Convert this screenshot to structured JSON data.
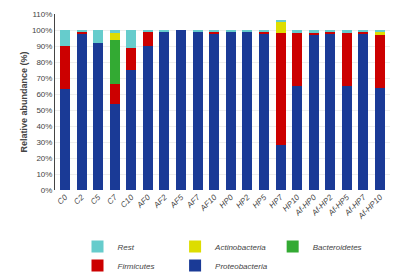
{
  "chart_data": {
    "type": "bar",
    "stacked": true,
    "categories": [
      "C0",
      "C2",
      "C5",
      "C7",
      "C10",
      "AF0",
      "AF2",
      "AF5",
      "AF7",
      "AF10",
      "HP0",
      "HP2",
      "HP5",
      "HP7",
      "HP10",
      "Af-HP0",
      "Af-HP2",
      "Af-HP5",
      "Af-HP7",
      "Af-HP10"
    ],
    "series": [
      {
        "name": "Proteobacteria",
        "color": "#1a3a96",
        "values": [
          63,
          98,
          92,
          54,
          75,
          90,
          99,
          100,
          99,
          98,
          99,
          99,
          98,
          28,
          65,
          97,
          98,
          65,
          98,
          64
        ]
      },
      {
        "name": "Firmicutes",
        "color": "#cc0000",
        "values": [
          27,
          1,
          0,
          12,
          14,
          9,
          0,
          0,
          0,
          1,
          0,
          0,
          1,
          70,
          33,
          1,
          1,
          33,
          1,
          33
        ]
      },
      {
        "name": "Bacteroidetes",
        "color": "#33aa33",
        "values": [
          0,
          0,
          0,
          28,
          0,
          0,
          0,
          0,
          0,
          0,
          0,
          0,
          0,
          0,
          0,
          0,
          0,
          0,
          0,
          0
        ]
      },
      {
        "name": "Actinobacteria",
        "color": "#dddd00",
        "values": [
          0,
          0,
          0,
          4,
          0,
          0,
          0,
          0,
          0,
          0,
          0,
          0,
          0,
          7,
          0,
          0,
          0,
          0,
          0,
          2
        ]
      },
      {
        "name": "Rest",
        "color": "#66cccc",
        "values": [
          10,
          1,
          8,
          2,
          11,
          1,
          1,
          0,
          1,
          1,
          1,
          1,
          1,
          1,
          2,
          2,
          1,
          2,
          1,
          1
        ]
      }
    ],
    "ylabel": "Relative abundance (%)",
    "ylim": [
      0,
      110
    ],
    "yticks": [
      {
        "value": 0,
        "label": "0%"
      },
      {
        "value": 10,
        "label": "10%"
      },
      {
        "value": 20,
        "label": "20%"
      },
      {
        "value": 30,
        "label": "30%"
      },
      {
        "value": 40,
        "label": "40%"
      },
      {
        "value": 50,
        "label": "50%"
      },
      {
        "value": 60,
        "label": "60%"
      },
      {
        "value": 70,
        "label": "70%"
      },
      {
        "value": 80,
        "label": "80%"
      },
      {
        "value": 90,
        "label": "90%"
      },
      {
        "value": 100,
        "label": "100%"
      },
      {
        "value": 110,
        "label": "110%"
      }
    ],
    "grid": true,
    "legend": "bottom"
  }
}
